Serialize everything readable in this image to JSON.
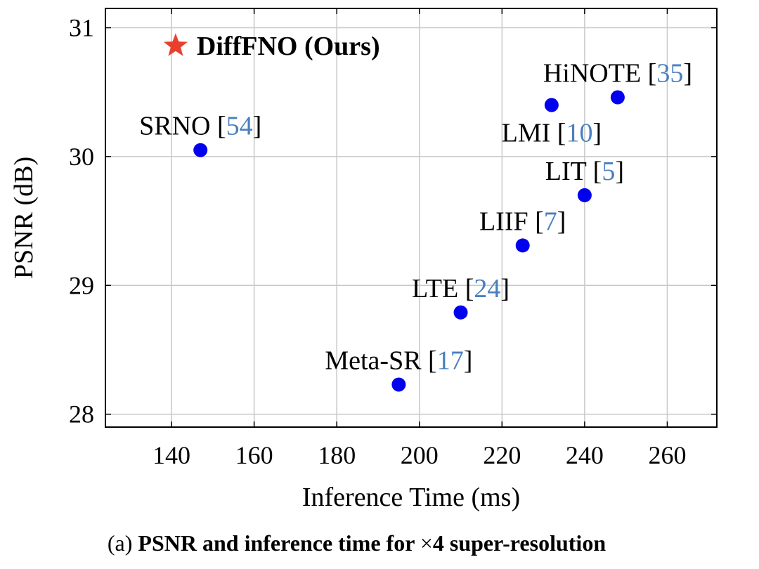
{
  "chart_data": {
    "type": "scatter",
    "xlabel": "Inference Time (ms)",
    "ylabel": "PSNR (dB)",
    "xlim": [
      124,
      272
    ],
    "ylim": [
      27.9,
      31.15
    ],
    "xticks": [
      140,
      160,
      180,
      200,
      220,
      240,
      260
    ],
    "yticks": [
      28,
      29,
      30,
      31
    ],
    "grid": true,
    "points": [
      {
        "name": "SRNO",
        "ref": "54",
        "x": 147,
        "y": 30.05,
        "label_pos": "above"
      },
      {
        "name": "Meta-SR",
        "ref": "17",
        "x": 195,
        "y": 28.23,
        "label_pos": "above"
      },
      {
        "name": "LTE",
        "ref": "24",
        "x": 210,
        "y": 28.79,
        "label_pos": "above"
      },
      {
        "name": "LIIF",
        "ref": "7",
        "x": 225,
        "y": 29.31,
        "label_pos": "above"
      },
      {
        "name": "LIT",
        "ref": "5",
        "x": 240,
        "y": 29.7,
        "label_pos": "above"
      },
      {
        "name": "LMI",
        "ref": "10",
        "x": 232,
        "y": 30.4,
        "label_pos": "below"
      },
      {
        "name": "HiNOTE",
        "ref": "35",
        "x": 248,
        "y": 30.46,
        "label_pos": "above"
      }
    ],
    "ours": {
      "name": "DiffFNO (Ours)",
      "x": 141,
      "y": 30.86,
      "marker": "star"
    },
    "colors": {
      "points": "#0000ee",
      "ours": "#e8402e",
      "refs": "#4a7fbf",
      "grid": "#c8c8c8"
    }
  },
  "caption": {
    "prefix": "(a) ",
    "bold": "PSNR and inference time for ",
    "times_symbol": "×",
    "bold_rest": "4 super-resolution"
  }
}
